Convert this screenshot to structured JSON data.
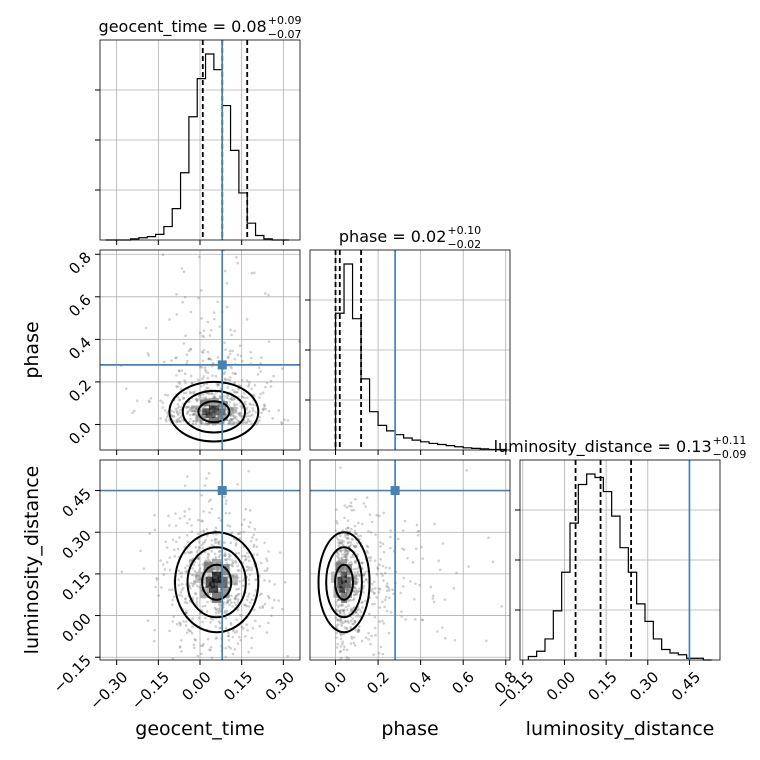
{
  "chart_data": {
    "type": "corner",
    "parameters": [
      "geocent_time",
      "phase",
      "luminosity_distance"
    ],
    "axis_labels": {
      "geocent_time": "geocent_time",
      "phase": "phase",
      "luminosity_distance": "luminosity_distance"
    },
    "ranges": {
      "geocent_time": [
        -0.36,
        0.36
      ],
      "phase": [
        -0.12,
        0.82
      ],
      "luminosity_distance": [
        -0.16,
        0.56
      ]
    },
    "tick_labels": {
      "geocent_time": [
        "−0.30",
        "−0.15",
        "0.00",
        "0.15",
        "0.30"
      ],
      "phase": [
        "0.0",
        "0.2",
        "0.4",
        "0.6",
        "0.8"
      ],
      "luminosity_distance": [
        "−0.15",
        "0.00",
        "0.15",
        "0.30",
        "0.45"
      ]
    },
    "tick_values": {
      "geocent_time": [
        -0.3,
        -0.15,
        0.0,
        0.15,
        0.3
      ],
      "phase": [
        0.0,
        0.2,
        0.4,
        0.6,
        0.8
      ],
      "luminosity_distance": [
        -0.15,
        0.0,
        0.15,
        0.3,
        0.45
      ]
    },
    "titles": {
      "geocent_time": {
        "text": "geocent_time = 0.08",
        "plus": "+0.09",
        "minus": "−0.07"
      },
      "phase": {
        "text": "phase = 0.02",
        "plus": "+0.10",
        "minus": "−0.02"
      },
      "luminosity_distance": {
        "text": "luminosity_distance = 0.13",
        "plus": "+0.11",
        "minus": "−0.09"
      }
    },
    "quantiles": {
      "geocent_time": [
        0.01,
        0.08,
        0.17
      ],
      "phase": [
        0.0,
        0.02,
        0.12
      ],
      "luminosity_distance": [
        0.04,
        0.13,
        0.24
      ]
    },
    "truths": {
      "geocent_time": 0.08,
      "phase": 0.28,
      "luminosity_distance": 0.45
    },
    "histograms": {
      "geocent_time": {
        "edges": [
          -0.34,
          -0.31,
          -0.28,
          -0.25,
          -0.22,
          -0.19,
          -0.16,
          -0.13,
          -0.1,
          -0.07,
          -0.04,
          -0.01,
          0.02,
          0.05,
          0.08,
          0.11,
          0.14,
          0.17,
          0.2,
          0.23,
          0.26,
          0.29,
          0.32
        ],
        "counts": [
          0,
          0,
          0,
          1,
          2,
          3,
          5,
          12,
          28,
          60,
          110,
          144,
          166,
          152,
          120,
          80,
          42,
          15,
          4,
          1,
          0,
          0
        ]
      },
      "phase": {
        "edges": [
          0.0,
          0.04,
          0.08,
          0.12,
          0.16,
          0.2,
          0.24,
          0.28,
          0.32,
          0.36,
          0.4,
          0.44,
          0.48,
          0.52,
          0.56,
          0.6,
          0.64,
          0.68,
          0.72,
          0.76,
          0.8
        ],
        "counts": [
          250,
          340,
          240,
          130,
          70,
          45,
          35,
          28,
          22,
          18,
          15,
          12,
          10,
          8,
          6,
          4,
          3,
          2,
          1,
          1
        ]
      },
      "luminosity_distance": {
        "edges": [
          -0.13,
          -0.1,
          -0.07,
          -0.04,
          -0.01,
          0.02,
          0.05,
          0.08,
          0.11,
          0.14,
          0.17,
          0.2,
          0.23,
          0.26,
          0.29,
          0.32,
          0.35,
          0.38,
          0.41,
          0.44,
          0.47,
          0.5,
          0.53
        ],
        "counts": [
          2,
          5,
          12,
          28,
          50,
          78,
          100,
          106,
          104,
          96,
          82,
          64,
          50,
          32,
          22,
          12,
          6,
          4,
          3,
          1,
          1,
          0
        ]
      }
    },
    "pair_stats": {
      "geocent_time|phase": {
        "mx": 0.05,
        "sx": 0.08,
        "my": 0.06,
        "sy": 0.07
      },
      "geocent_time|luminosity_distance": {
        "mx": 0.06,
        "sx": 0.075,
        "my": 0.12,
        "sy": 0.09
      },
      "phase|luminosity_distance": {
        "mx": 0.04,
        "sx": 0.06,
        "my": 0.12,
        "sy": 0.09
      }
    },
    "colors": {
      "truth": "#4682b4",
      "lines": "#000000",
      "points": "#777777",
      "grid": "#b0b0b0"
    }
  }
}
